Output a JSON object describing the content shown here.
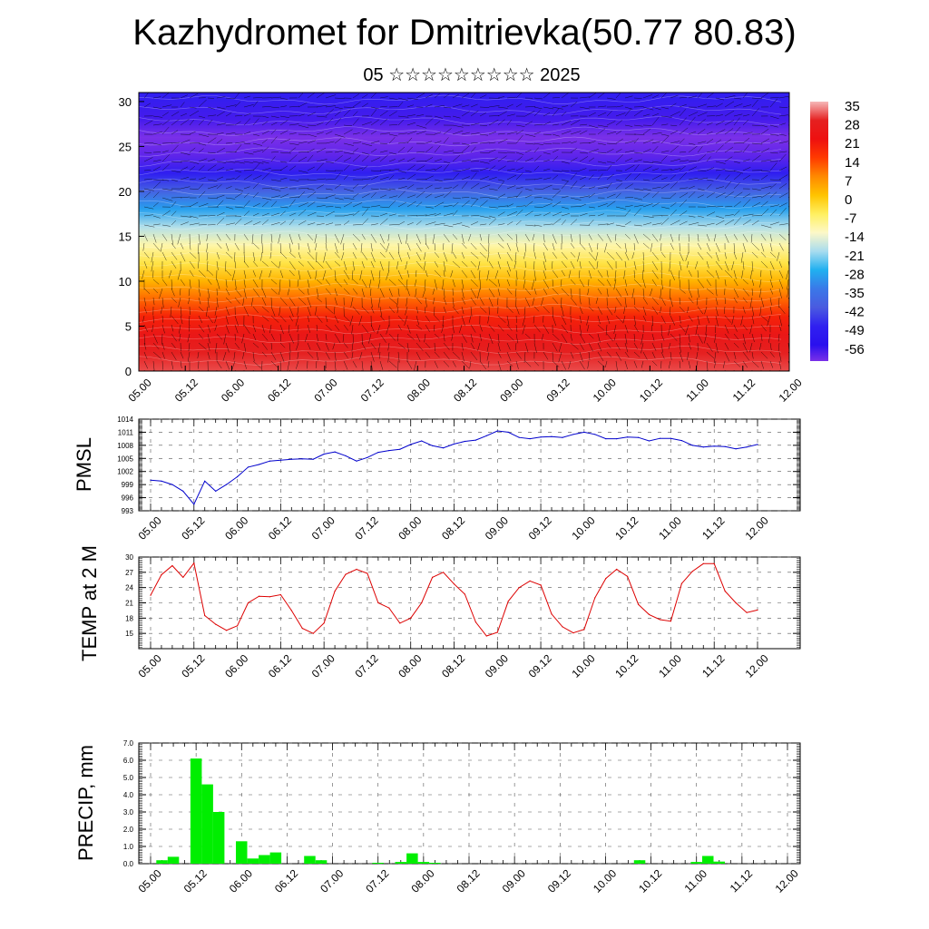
{
  "header": {
    "title": "Kazhydromet for Dmitrievka(50.77 80.83)",
    "subtitle": "05 ☆☆☆☆☆☆☆☆☆ 2025"
  },
  "time_ticks": [
    "05.00",
    "05.12",
    "06.00",
    "06.12",
    "07.00",
    "07.12",
    "08.00",
    "08.12",
    "09.00",
    "09.12",
    "10.00",
    "10.12",
    "11.00",
    "11.12",
    "12.00"
  ],
  "chart_data": [
    {
      "type": "heatmap",
      "name": "upper-air-temperature-wind",
      "x": [
        "05.00",
        "05.12",
        "06.00",
        "06.12",
        "07.00",
        "07.12",
        "08.00",
        "08.12",
        "09.00",
        "09.12",
        "10.00",
        "10.12",
        "11.00",
        "11.12",
        "12.00"
      ],
      "y_ticks": [
        "0",
        "5",
        "10",
        "15",
        "20",
        "25",
        "30"
      ],
      "ylim": [
        0,
        31
      ],
      "temperature_profile": {
        "levels": [
          0,
          2,
          4,
          6,
          8,
          10,
          12,
          14,
          16,
          18,
          20,
          22,
          24,
          26,
          28,
          31
        ],
        "temps": [
          30,
          28,
          24,
          18,
          10,
          2,
          -5,
          -12,
          -20,
          -30,
          -40,
          -50,
          -60,
          -64,
          -58,
          -50
        ]
      },
      "colorbar": {
        "labels": [
          "35",
          "28",
          "21",
          "14",
          "7",
          "0",
          "-7",
          "-14",
          "-21",
          "-28",
          "-35",
          "-42",
          "-49",
          "-56"
        ],
        "stops": [
          {
            "v": 35,
            "c": "#f6b8b8"
          },
          {
            "v": 28,
            "c": "#e52020"
          },
          {
            "v": 21,
            "c": "#ee1010"
          },
          {
            "v": 14,
            "c": "#ff3a00"
          },
          {
            "v": 7,
            "c": "#ff8a00"
          },
          {
            "v": 0,
            "c": "#ffc400"
          },
          {
            "v": -7,
            "c": "#fff060"
          },
          {
            "v": -14,
            "c": "#fdf8c8"
          },
          {
            "v": -21,
            "c": "#a8dcef"
          },
          {
            "v": -28,
            "c": "#20b0f0"
          },
          {
            "v": -35,
            "c": "#3a78e8"
          },
          {
            "v": -42,
            "c": "#4a5ae0"
          },
          {
            "v": -49,
            "c": "#3020f0"
          },
          {
            "v": -56,
            "c": "#2a10ee"
          },
          {
            "v": -62,
            "c": "#7a30e8"
          }
        ]
      }
    },
    {
      "type": "line",
      "name": "pmsl",
      "ylabel": "PMSL",
      "y_ticks": [
        "993",
        "996",
        "999",
        "1002",
        "1005",
        "1008",
        "1011",
        "1014"
      ],
      "ylim": [
        993,
        1014
      ],
      "color": "#0000cc",
      "x_hours": [
        0,
        3,
        6,
        9,
        12,
        15,
        18,
        21,
        24,
        27,
        30,
        33,
        36,
        39,
        42,
        45,
        48,
        51,
        54,
        57,
        60,
        63,
        66,
        69,
        72,
        75,
        78,
        81,
        84,
        87,
        90,
        93,
        96,
        99,
        102,
        105,
        108,
        111,
        114,
        117,
        120,
        123,
        126,
        129,
        132,
        135,
        138,
        141,
        144,
        147,
        150,
        153,
        156,
        159,
        162,
        165,
        168
      ],
      "values": [
        1000,
        999.8,
        999,
        997.5,
        994.5,
        999.8,
        997.5,
        999,
        1000.8,
        1003,
        1003.6,
        1004.4,
        1004.6,
        1004.8,
        1004.9,
        1004.8,
        1006,
        1006.5,
        1005.6,
        1004.4,
        1005.2,
        1006.4,
        1006.8,
        1007.1,
        1008.2,
        1009,
        1007.9,
        1007.4,
        1008.3,
        1008.9,
        1009.2,
        1010.2,
        1011.3,
        1011,
        1009.8,
        1009.5,
        1009.9,
        1010,
        1009.8,
        1010.5,
        1011,
        1010.5,
        1009.5,
        1009.5,
        1009.9,
        1009.8,
        1009,
        1009.6,
        1009.6,
        1009.1,
        1008,
        1007.6,
        1007.8,
        1007.7,
        1007.2,
        1007.6,
        1008.2
      ]
    },
    {
      "type": "line",
      "name": "temp-2m",
      "ylabel": "TEMP at 2 M",
      "y_ticks": [
        "15",
        "18",
        "21",
        "24",
        "27",
        "30"
      ],
      "ylim": [
        12,
        30
      ],
      "color": "#dd0000",
      "x_hours": [
        0,
        3,
        6,
        9,
        12,
        15,
        18,
        21,
        24,
        27,
        30,
        33,
        36,
        39,
        42,
        45,
        48,
        51,
        54,
        57,
        60,
        63,
        66,
        69,
        72,
        75,
        78,
        81,
        84,
        87,
        90,
        93,
        96,
        99,
        102,
        105,
        108,
        111,
        114,
        117,
        120,
        123,
        126,
        129,
        132,
        135,
        138,
        141,
        144,
        147,
        150,
        153,
        156,
        159,
        162,
        165,
        168
      ],
      "values": [
        22.5,
        26.5,
        28.3,
        26,
        28.8,
        18.5,
        16.8,
        15.6,
        16.5,
        21,
        22.3,
        22.2,
        22.6,
        19.5,
        16,
        15,
        17,
        23.3,
        26.6,
        27.6,
        26.8,
        21,
        20,
        17,
        18,
        21,
        26,
        27,
        24.7,
        22.7,
        17.2,
        14.5,
        15.2,
        21.3,
        24,
        25.3,
        24.5,
        18.8,
        16.3,
        15.1,
        15.8,
        22,
        25.8,
        27.6,
        26.2,
        20.7,
        18.7,
        17.7,
        17.4,
        24.8,
        27.2,
        28.7,
        28.7,
        23.3,
        21,
        19.1,
        19.6
      ]
    },
    {
      "type": "bar",
      "name": "precip",
      "ylabel": "PRECIP, mm",
      "y_ticks": [
        "0.0",
        "1.0",
        "2.0",
        "3.0",
        "4.0",
        "5.0",
        "6.0",
        "7.0"
      ],
      "ylim": [
        0,
        7
      ],
      "color": "#00ee00",
      "x_hours": [
        3,
        6,
        12,
        15,
        18,
        24,
        27,
        30,
        33,
        42,
        45,
        60,
        66,
        69,
        72,
        75,
        129,
        144,
        147,
        150
      ],
      "values": [
        0.2,
        0.4,
        6.1,
        4.6,
        3.0,
        1.3,
        0.3,
        0.5,
        0.65,
        0.45,
        0.2,
        0.05,
        0.1,
        0.6,
        0.1,
        0.05,
        0.2,
        0.1,
        0.45,
        0.12
      ]
    }
  ]
}
